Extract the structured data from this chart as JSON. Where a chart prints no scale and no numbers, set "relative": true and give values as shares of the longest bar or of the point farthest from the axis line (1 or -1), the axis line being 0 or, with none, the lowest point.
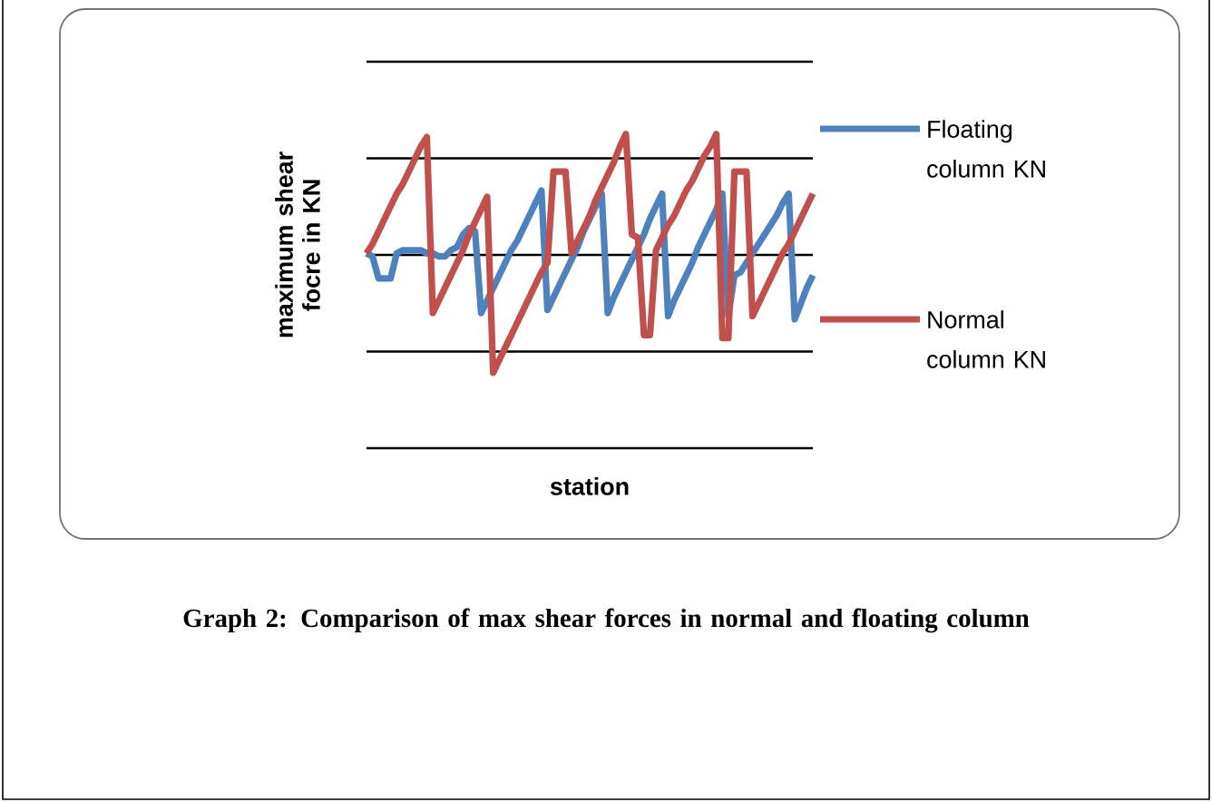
{
  "chart_data": {
    "type": "line",
    "relative": true,
    "title": "Graph 2: Comparison of max shear forces in normal and floating column",
    "xlabel": "station",
    "ylabel": "maximum shear focre in KN",
    "grid": "y",
    "legend": "right",
    "categories": [
      null,
      null,
      null,
      null,
      null,
      null,
      null,
      null,
      null,
      null,
      null,
      null,
      null,
      null,
      null,
      null,
      null,
      null,
      null,
      null,
      null,
      null,
      null,
      null,
      null,
      null,
      null,
      null,
      null,
      null,
      null,
      null,
      null,
      null,
      null,
      null,
      null,
      null,
      null,
      null,
      null,
      null,
      null,
      null,
      null,
      null,
      null,
      null,
      null,
      null,
      null,
      null,
      null,
      null,
      null,
      null,
      null,
      null,
      null,
      null,
      null,
      null,
      null,
      null,
      null,
      null,
      null,
      null,
      null,
      null,
      null,
      null,
      null,
      null,
      null
    ],
    "series": [
      {
        "name": "Floating column KN",
        "color": "#4f81bd",
        "values": [
          0.62,
          0.61,
          0.54,
          0.54,
          0.54,
          0.62,
          0.63,
          0.63,
          0.63,
          0.63,
          0.62,
          0.62,
          0.61,
          0.61,
          0.63,
          0.64,
          0.68,
          0.7,
          0.69,
          0.43,
          0.47,
          0.51,
          0.55,
          0.59,
          0.63,
          0.66,
          0.7,
          0.74,
          0.78,
          0.82,
          0.44,
          0.48,
          0.52,
          0.56,
          0.6,
          0.64,
          0.69,
          0.73,
          0.77,
          0.81,
          0.43,
          0.48,
          0.52,
          0.56,
          0.6,
          0.64,
          0.68,
          0.73,
          0.77,
          0.81,
          0.42,
          0.47,
          0.51,
          0.55,
          0.59,
          0.64,
          0.68,
          0.72,
          0.76,
          0.81,
          0.42,
          0.55,
          0.56,
          0.59,
          0.62,
          0.65,
          0.68,
          0.71,
          0.74,
          0.78,
          0.81,
          0.41,
          0.46,
          0.51,
          0.55
        ]
      },
      {
        "name": "Normal column KN",
        "color": "#c0504d",
        "values": [
          0.62,
          0.65,
          0.69,
          0.73,
          0.77,
          0.81,
          0.84,
          0.88,
          0.92,
          0.96,
          0.99,
          0.43,
          0.47,
          0.51,
          0.55,
          0.59,
          0.63,
          0.68,
          0.72,
          0.76,
          0.8,
          0.24,
          0.28,
          0.32,
          0.36,
          0.4,
          0.44,
          0.48,
          0.52,
          0.56,
          0.59,
          0.88,
          0.88,
          0.88,
          0.62,
          0.66,
          0.7,
          0.74,
          0.79,
          0.83,
          0.87,
          0.91,
          0.96,
          1,
          0.68,
          0.67,
          0.36,
          0.36,
          0.63,
          0.67,
          0.71,
          0.74,
          0.78,
          0.82,
          0.85,
          0.89,
          0.93,
          0.96,
          1,
          0.35,
          0.35,
          0.88,
          0.88,
          0.88,
          0.42,
          0.46,
          0.5,
          0.54,
          0.58,
          0.62,
          0.65,
          0.69,
          0.73,
          0.77,
          0.81
        ]
      }
    ]
  }
}
